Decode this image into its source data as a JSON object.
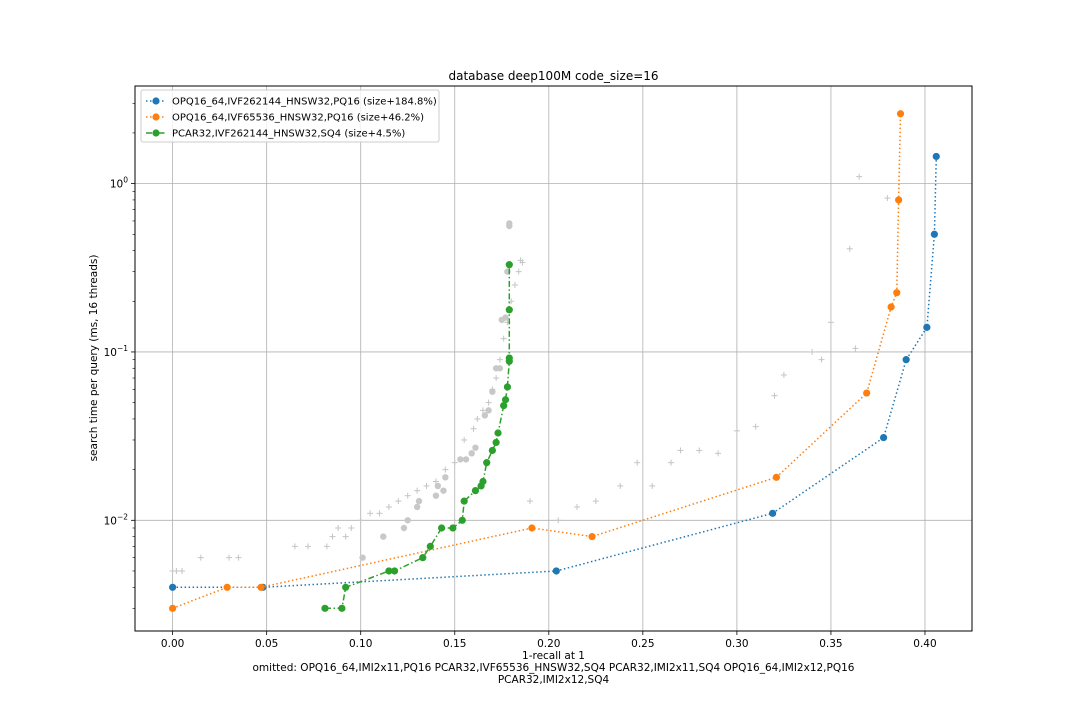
{
  "chart_data": {
    "type": "line",
    "title": "database deep100M code_size=16",
    "xlabel": "1-recall at 1",
    "ylabel": "search time per query (ms, 16 threads)",
    "footer_lines": [
      "omitted: OPQ16_64,IMI2x11,PQ16 PCAR32,IVF65536_HNSW32,SQ4 PCAR32,IMI2x11,SQ4 OPQ16_64,IMI2x12,PQ16",
      "PCAR32,IMI2x12,SQ4"
    ],
    "xlim": [
      -0.02,
      0.425
    ],
    "ylim": [
      0.0022,
      3.8
    ],
    "yscale": "log",
    "grid": true,
    "legend_position": "upper-left",
    "xticks": [
      {
        "value": 0.0,
        "label": "0.00"
      },
      {
        "value": 0.05,
        "label": "0.05"
      },
      {
        "value": 0.1,
        "label": "0.10"
      },
      {
        "value": 0.15,
        "label": "0.15"
      },
      {
        "value": 0.2,
        "label": "0.20"
      },
      {
        "value": 0.25,
        "label": "0.25"
      },
      {
        "value": 0.3,
        "label": "0.30"
      },
      {
        "value": 0.35,
        "label": "0.35"
      },
      {
        "value": 0.4,
        "label": "0.40"
      }
    ],
    "yticks": [
      {
        "value": 0.01,
        "base": "10",
        "exp": "−2"
      },
      {
        "value": 0.1,
        "base": "10",
        "exp": "−1"
      },
      {
        "value": 1,
        "base": "10",
        "exp": "0"
      }
    ],
    "series": [
      {
        "name": "OPQ16_64,IVF262144_HNSW32,PQ16 (size+184.8%)",
        "color": "#1f77b4",
        "dash": "dotted",
        "x": [
          0.0,
          0.048,
          0.204,
          0.319,
          0.378,
          0.39,
          0.401,
          0.405,
          0.406
        ],
        "y": [
          0.004,
          0.004,
          0.005,
          0.011,
          0.031,
          0.09,
          0.14,
          0.5,
          1.45
        ]
      },
      {
        "name": "OPQ16_64,IVF65536_HNSW32,PQ16 (size+46.2%)",
        "color": "#ff7f0e",
        "dash": "dotted",
        "x": [
          0.0,
          0.029,
          0.047,
          0.191,
          0.223,
          0.321,
          0.369,
          0.382,
          0.385,
          0.386,
          0.387
        ],
        "y": [
          0.003,
          0.004,
          0.004,
          0.009,
          0.008,
          0.018,
          0.057,
          0.185,
          0.225,
          0.8,
          2.6
        ]
      },
      {
        "name": "PCAR32,IVF262144_HNSW32,SQ4 (size+4.5%)",
        "color": "#2ca02c",
        "dash": "dashdot",
        "x": [
          0.081,
          0.09,
          0.092,
          0.115,
          0.118,
          0.133,
          0.137,
          0.143,
          0.149,
          0.154,
          0.155,
          0.161,
          0.164,
          0.165,
          0.167,
          0.17,
          0.172,
          0.173,
          0.176,
          0.177,
          0.178,
          0.179,
          0.179,
          0.179,
          0.179
        ],
        "y": [
          0.003,
          0.003,
          0.004,
          0.005,
          0.005,
          0.006,
          0.007,
          0.009,
          0.009,
          0.01,
          0.013,
          0.015,
          0.016,
          0.017,
          0.022,
          0.026,
          0.029,
          0.033,
          0.048,
          0.052,
          0.062,
          0.088,
          0.092,
          0.178,
          0.33
        ]
      }
    ],
    "background_points": {
      "gray_dots": {
        "color": "#c8c8c8",
        "x": [
          0.101,
          0.112,
          0.123,
          0.125,
          0.13,
          0.131,
          0.14,
          0.141,
          0.144,
          0.145,
          0.153,
          0.156,
          0.159,
          0.161,
          0.166,
          0.168,
          0.17,
          0.172,
          0.174,
          0.175,
          0.177,
          0.178,
          0.179,
          0.179
        ],
        "y": [
          0.006,
          0.008,
          0.009,
          0.01,
          0.012,
          0.013,
          0.014,
          0.016,
          0.015,
          0.018,
          0.023,
          0.023,
          0.025,
          0.027,
          0.042,
          0.045,
          0.058,
          0.08,
          0.08,
          0.155,
          0.16,
          0.3,
          0.56,
          0.58
        ]
      },
      "gray_crosses": {
        "color": "#c4c4c4",
        "x": [
          0.0,
          0.002,
          0.005,
          0.015,
          0.03,
          0.035,
          0.065,
          0.072,
          0.082,
          0.085,
          0.088,
          0.092,
          0.095,
          0.1,
          0.105,
          0.11,
          0.115,
          0.12,
          0.125,
          0.13,
          0.135,
          0.14,
          0.145,
          0.15,
          0.155,
          0.16,
          0.162,
          0.165,
          0.168,
          0.17,
          0.172,
          0.174,
          0.176,
          0.178,
          0.18,
          0.182,
          0.184,
          0.185,
          0.186,
          0.19,
          0.205,
          0.215,
          0.225,
          0.238,
          0.247,
          0.255,
          0.265,
          0.27,
          0.28,
          0.29,
          0.3,
          0.31,
          0.32,
          0.325,
          0.34,
          0.345,
          0.35,
          0.36,
          0.363,
          0.365,
          0.38
        ],
        "y": [
          0.005,
          0.005,
          0.005,
          0.006,
          0.006,
          0.006,
          0.007,
          0.007,
          0.007,
          0.008,
          0.009,
          0.008,
          0.009,
          0.01,
          0.011,
          0.011,
          0.012,
          0.013,
          0.014,
          0.015,
          0.016,
          0.017,
          0.02,
          0.022,
          0.03,
          0.035,
          0.04,
          0.045,
          0.05,
          0.06,
          0.07,
          0.09,
          0.12,
          0.15,
          0.2,
          0.25,
          0.3,
          0.35,
          0.34,
          0.013,
          0.01,
          0.012,
          0.013,
          0.016,
          0.022,
          0.016,
          0.022,
          0.026,
          0.026,
          0.025,
          0.034,
          0.036,
          0.055,
          0.073,
          0.1,
          0.09,
          0.15,
          0.41,
          0.105,
          1.1,
          0.82
        ]
      }
    }
  }
}
